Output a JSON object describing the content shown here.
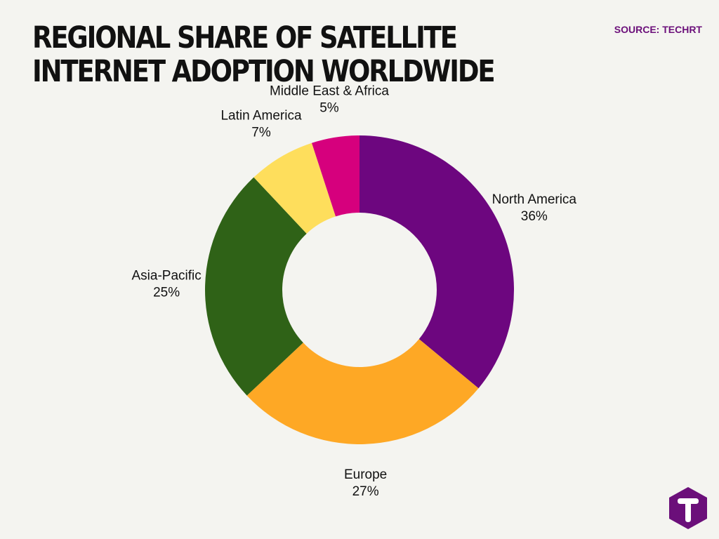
{
  "header": {
    "title": "REGIONAL SHARE OF SATELLITE INTERNET ADOPTION WORLDWIDE",
    "source": "SOURCE: TECHRT"
  },
  "logo": {
    "icon": "techrt-t-hexagon-icon",
    "color": "#6b0f7a"
  },
  "chart_data": {
    "type": "pie",
    "donut": true,
    "title": "REGIONAL SHARE OF SATELLITE INTERNET ADOPTION WORLDWIDE",
    "unit": "%",
    "start_angle_deg": 0,
    "direction": "clockwise",
    "slices": [
      {
        "label": "North America",
        "value": 36,
        "value_label": "36%",
        "color": "#6d067f"
      },
      {
        "label": "Europe",
        "value": 27,
        "value_label": "27%",
        "color": "#fea825"
      },
      {
        "label": "Asia-Pacific",
        "value": 25,
        "value_label": "25%",
        "color": "#2f6217"
      },
      {
        "label": "Latin America",
        "value": 7,
        "value_label": "7%",
        "color": "#fede5c"
      },
      {
        "label": "Middle East & Africa",
        "value": 5,
        "value_label": "5%",
        "color": "#d6007d"
      }
    ]
  }
}
